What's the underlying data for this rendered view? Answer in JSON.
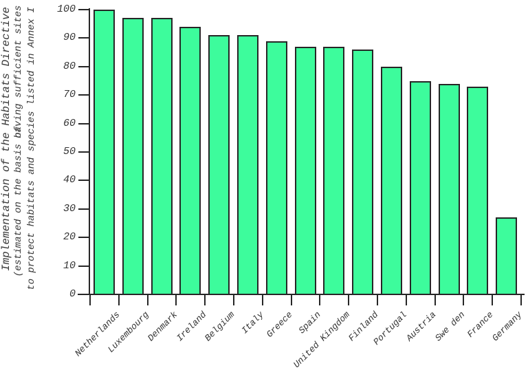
{
  "chart_data": {
    "type": "bar",
    "title": "",
    "ylabel_lines": [
      "Implementation of the Habitats Directive",
      "(estimated on the basis of",
      "having sufficient sites",
      "to protect habitats and species listed in Annex I"
    ],
    "categories": [
      "Netherlands",
      "Luxembourg",
      "Denmark",
      "Ireland",
      "Belgium",
      "Italy",
      "Greece",
      "Spain",
      "United Kingdom",
      "Finland",
      "Portugal",
      "Austria",
      "Swe den",
      "France",
      "Germany"
    ],
    "values": [
      100,
      97,
      97,
      94,
      91,
      91,
      89,
      87,
      87,
      86,
      80,
      75,
      74,
      73,
      27
    ],
    "xlabel": "",
    "ylim": [
      0,
      100
    ],
    "yticks": [
      0,
      10,
      20,
      30,
      40,
      50,
      60,
      70,
      80,
      90,
      100
    ],
    "grid": false,
    "legend": "none",
    "bar_color": "#3DFC9C",
    "bar_border_color": "#262626",
    "axis_color": "#262626",
    "text_color": "#333333"
  }
}
